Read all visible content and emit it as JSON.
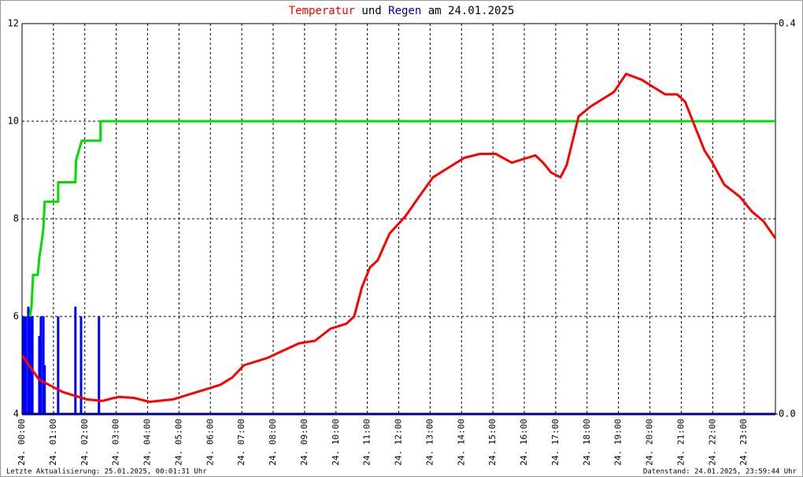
{
  "chart_data": {
    "type": "line",
    "title": [
      {
        "text": "Temperatur",
        "color": "#ff0000"
      },
      {
        "text": "und",
        "color": "#000000"
      },
      {
        "text": "Regen",
        "color": "#0000a0"
      },
      {
        "text": "am 24.01.2025",
        "color": "#000000"
      }
    ],
    "xlim": [
      0,
      24
    ],
    "xticks": [
      {
        "value": 0,
        "label": "24. 00:00"
      },
      {
        "value": 1,
        "label": "24. 01:00"
      },
      {
        "value": 2,
        "label": "24. 02:00"
      },
      {
        "value": 3,
        "label": "24. 03:00"
      },
      {
        "value": 4,
        "label": "24. 04:00"
      },
      {
        "value": 5,
        "label": "24. 05:00"
      },
      {
        "value": 6,
        "label": "24. 06:00"
      },
      {
        "value": 7,
        "label": "24. 07:00"
      },
      {
        "value": 8,
        "label": "24. 08:00"
      },
      {
        "value": 9,
        "label": "24. 09:00"
      },
      {
        "value": 10,
        "label": "24. 10:00"
      },
      {
        "value": 11,
        "label": "24. 11:00"
      },
      {
        "value": 12,
        "label": "24. 12:00"
      },
      {
        "value": 13,
        "label": "24. 13:00"
      },
      {
        "value": 14,
        "label": "24. 14:00"
      },
      {
        "value": 15,
        "label": "24. 15:00"
      },
      {
        "value": 16,
        "label": "24. 16:00"
      },
      {
        "value": 17,
        "label": "24. 17:00"
      },
      {
        "value": 18,
        "label": "24. 18:00"
      },
      {
        "value": 19,
        "label": "24. 19:00"
      },
      {
        "value": 20,
        "label": "24. 20:00"
      },
      {
        "value": 21,
        "label": "24. 21:00"
      },
      {
        "value": 22,
        "label": "24. 22:00"
      },
      {
        "value": 23,
        "label": "24. 23:00"
      }
    ],
    "ylim": [
      4,
      12
    ],
    "yticks": [
      4,
      6,
      8,
      10,
      12
    ],
    "y2lim": [
      0,
      0.4
    ],
    "y2ticks": [
      {
        "value": 0,
        "label": "0.0"
      },
      {
        "value": 0.4,
        "label": "0.4"
      }
    ],
    "grid": true,
    "series": [
      {
        "type": "bar",
        "axis": "y2",
        "color": "#0000ff",
        "x": [
          0.05,
          0.12,
          0.2,
          0.27,
          0.33,
          0.55,
          0.6,
          0.68,
          0.72,
          1.15,
          1.7,
          1.88,
          2.45
        ],
        "values": [
          0.1,
          0.1,
          0.11,
          0.1,
          0.1,
          0.08,
          0.1,
          0.1,
          0.05,
          0.1,
          0.11,
          0.1,
          0.1
        ]
      },
      {
        "type": "line",
        "axis": "y2",
        "color": "#00dd00",
        "x": [
          0.25,
          0.3,
          0.35,
          0.5,
          0.55,
          0.62,
          0.68,
          0.72,
          1.15,
          1.15,
          1.7,
          1.72,
          1.9,
          2.5,
          2.5,
          24
        ],
        "values": [
          0.1,
          0.11,
          0.1425,
          0.1425,
          0.16,
          0.175,
          0.19,
          0.2175,
          0.2175,
          0.2375,
          0.2375,
          0.26,
          0.28,
          0.28,
          0.3,
          0.3
        ]
      },
      {
        "type": "line",
        "color": "#ff0000",
        "x": [
          0,
          0.55,
          1.3,
          2.06,
          2.56,
          3.06,
          3.56,
          4.06,
          4.81,
          5.57,
          6.32,
          6.7,
          7.07,
          7.82,
          8.32,
          8.83,
          9.33,
          9.83,
          10.33,
          10.58,
          10.83,
          11.08,
          11.33,
          11.71,
          12.21,
          12.59,
          13.09,
          13.59,
          14.09,
          14.59,
          15.09,
          15.6,
          16.1,
          16.35,
          16.6,
          16.85,
          17.15,
          17.35,
          17.73,
          18.11,
          18.61,
          18.86,
          19.24,
          19.74,
          20.11,
          20.49,
          20.87,
          21.12,
          21.37,
          21.74,
          21.99,
          22.37,
          22.87,
          23.25,
          23.62,
          24
        ],
        "values": [
          5.2,
          4.7,
          4.45,
          4.3,
          4.27,
          4.35,
          4.33,
          4.25,
          4.3,
          4.45,
          4.6,
          4.75,
          5.0,
          5.15,
          5.3,
          5.45,
          5.5,
          5.75,
          5.85,
          6.0,
          6.6,
          7.0,
          7.15,
          7.7,
          8.05,
          8.4,
          8.85,
          9.05,
          9.25,
          9.33,
          9.33,
          9.15,
          9.25,
          9.3,
          9.15,
          8.95,
          8.85,
          9.1,
          10.1,
          10.3,
          10.5,
          10.6,
          10.97,
          10.85,
          10.7,
          10.55,
          10.55,
          10.4,
          10.0,
          9.4,
          9.15,
          8.7,
          8.45,
          8.15,
          7.95,
          7.6
        ]
      }
    ]
  },
  "footer": {
    "left": "Letzte Aktualisierung: 25.01.2025, 00:01:31 Uhr",
    "right": "Datenstand: 24.01.2025, 23:59:44 Uhr"
  }
}
